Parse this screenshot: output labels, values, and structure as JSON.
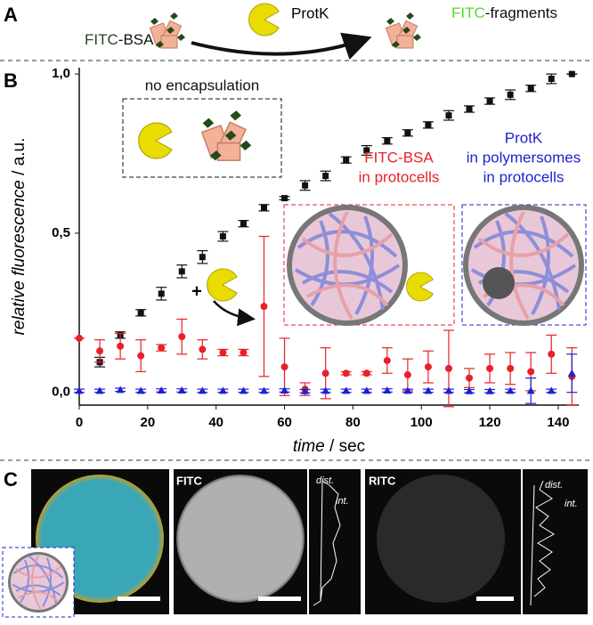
{
  "panel_a": {
    "label": "A",
    "fitc_bsa": [
      "FITC",
      "-BSA"
    ],
    "protk": "ProtK",
    "fitc_fragments": [
      "FITC",
      "-fragments"
    ]
  },
  "chart_data": {
    "type": "scatter",
    "label": "B",
    "xlabel": [
      "time",
      " / sec"
    ],
    "ylabel": [
      "relative fluorescence",
      " / a.u."
    ],
    "xlim": [
      0,
      146
    ],
    "ylim": [
      -0.04,
      1.02
    ],
    "xticks": [
      0,
      20,
      40,
      60,
      80,
      100,
      120,
      140
    ],
    "yticks": [
      {
        "value": 0,
        "label": "0,0"
      },
      {
        "value": 0.5,
        "label": "0,5"
      },
      {
        "value": 1,
        "label": "1,0"
      }
    ],
    "series": [
      {
        "name": "no encapsulation",
        "color": "#111111",
        "marker": "square",
        "x": [
          6,
          12,
          18,
          24,
          30,
          36,
          42,
          48,
          54,
          60,
          66,
          72,
          78,
          84,
          90,
          96,
          102,
          108,
          114,
          120,
          126,
          132,
          138,
          144
        ],
        "values": [
          0.095,
          0.18,
          0.25,
          0.31,
          0.38,
          0.425,
          0.49,
          0.53,
          0.58,
          0.61,
          0.65,
          0.68,
          0.73,
          0.76,
          0.79,
          0.815,
          0.84,
          0.87,
          0.89,
          0.915,
          0.935,
          0.955,
          0.985,
          1.0
        ],
        "errors": [
          0.015,
          0.01,
          0.01,
          0.02,
          0.02,
          0.02,
          0.015,
          0.01,
          0.01,
          0.005,
          0.015,
          0.015,
          0.01,
          0.015,
          0.01,
          0.01,
          0.01,
          0.015,
          0.01,
          0.01,
          0.015,
          0.01,
          0.015,
          0
        ]
      },
      {
        "name": [
          "FITC-BSA",
          "in protocells"
        ],
        "color": "#e8202a",
        "marker": "circle",
        "x": [
          0,
          6,
          12,
          18,
          24,
          30,
          36,
          42,
          48,
          54,
          60,
          66,
          72,
          78,
          84,
          90,
          96,
          102,
          108,
          114,
          120,
          126,
          132,
          138,
          144
        ],
        "values": [
          0.17,
          0.13,
          0.145,
          0.115,
          0.14,
          0.175,
          0.135,
          0.125,
          0.125,
          0.27,
          0.08,
          0.01,
          0.06,
          0.06,
          0.06,
          0.1,
          0.055,
          0.08,
          0.075,
          0.045,
          0.075,
          0.075,
          0.065,
          0.12,
          0.05
        ],
        "errors": [
          0,
          0.035,
          0.04,
          0.05,
          0.01,
          0.055,
          0.03,
          0.01,
          0.01,
          0.22,
          0.09,
          0.02,
          0.08,
          0.005,
          0.005,
          0.04,
          0.05,
          0.05,
          0.12,
          0.03,
          0.045,
          0.05,
          0.06,
          0.06,
          0.09
        ]
      },
      {
        "name": [
          "ProtK",
          "in polymersomes",
          "in protocells"
        ],
        "color": "#2020d0",
        "marker": "triangle",
        "x": [
          0,
          6,
          12,
          18,
          24,
          30,
          36,
          42,
          48,
          54,
          60,
          66,
          72,
          78,
          84,
          90,
          96,
          102,
          108,
          114,
          120,
          126,
          132,
          138,
          144
        ],
        "values": [
          0.005,
          0.005,
          0.008,
          0.005,
          0.006,
          0.006,
          0.005,
          0.005,
          0.005,
          0.005,
          0.006,
          0.004,
          0.005,
          0.005,
          0.005,
          0.006,
          0.005,
          0.005,
          0.005,
          0.004,
          0.004,
          0.005,
          0.005,
          0.005,
          0.06
        ],
        "errors": [
          0.005,
          0.005,
          0.005,
          0.005,
          0.005,
          0.005,
          0.005,
          0.005,
          0.005,
          0.005,
          0.005,
          0.005,
          0.005,
          0.005,
          0.005,
          0.005,
          0.005,
          0.005,
          0.005,
          0.005,
          0.005,
          0.005,
          0.04,
          0.005,
          0.06
        ]
      }
    ],
    "annotations": [
      "+"
    ]
  },
  "panel_c": {
    "label": "C",
    "images": [
      "FITC",
      "RITC"
    ],
    "profile_axes": [
      "dist.",
      "int."
    ]
  }
}
